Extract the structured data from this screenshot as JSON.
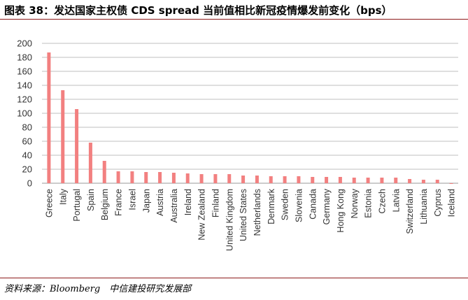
{
  "figure": {
    "title": "图表 38：发达国家主权债 CDS spread 当前值相比新冠疫情爆发前变化（bps）",
    "source": "资料来源：Bloomberg　中信建投研究发展部"
  },
  "colors": {
    "bar": "#f28080",
    "grid": "#bfbfbf",
    "text": "#333333",
    "rule": "#8c1a1a"
  },
  "chart_data": {
    "type": "bar",
    "title": "",
    "xlabel": "",
    "ylabel": "",
    "ylim": [
      0,
      200
    ],
    "yticks": [
      0,
      20,
      40,
      60,
      80,
      100,
      120,
      140,
      160,
      180,
      200
    ],
    "grid": true,
    "legend": "none",
    "categories": [
      "Greece",
      "Italy",
      "Portugal",
      "Spain",
      "Belgium",
      "France",
      "Israel",
      "Japan",
      "Austria",
      "Australia",
      "Ireland",
      "New Zealand",
      "Finland",
      "United Kingdom",
      "United States",
      "Netherlands",
      "Denmark",
      "Sweden",
      "Slovenia",
      "Canada",
      "Germany",
      "Hong Kong",
      "Norway",
      "Estonia",
      "Czech",
      "Latvia",
      "Switzerland",
      "Lithuania",
      "Cyprus",
      "Iceland"
    ],
    "values": [
      187,
      133,
      106,
      58,
      32,
      17,
      17,
      16,
      16,
      15,
      14,
      13,
      13,
      13,
      11,
      11,
      10,
      10,
      10,
      9,
      9,
      9,
      8,
      8,
      8,
      8,
      6,
      5,
      5,
      -1
    ]
  }
}
